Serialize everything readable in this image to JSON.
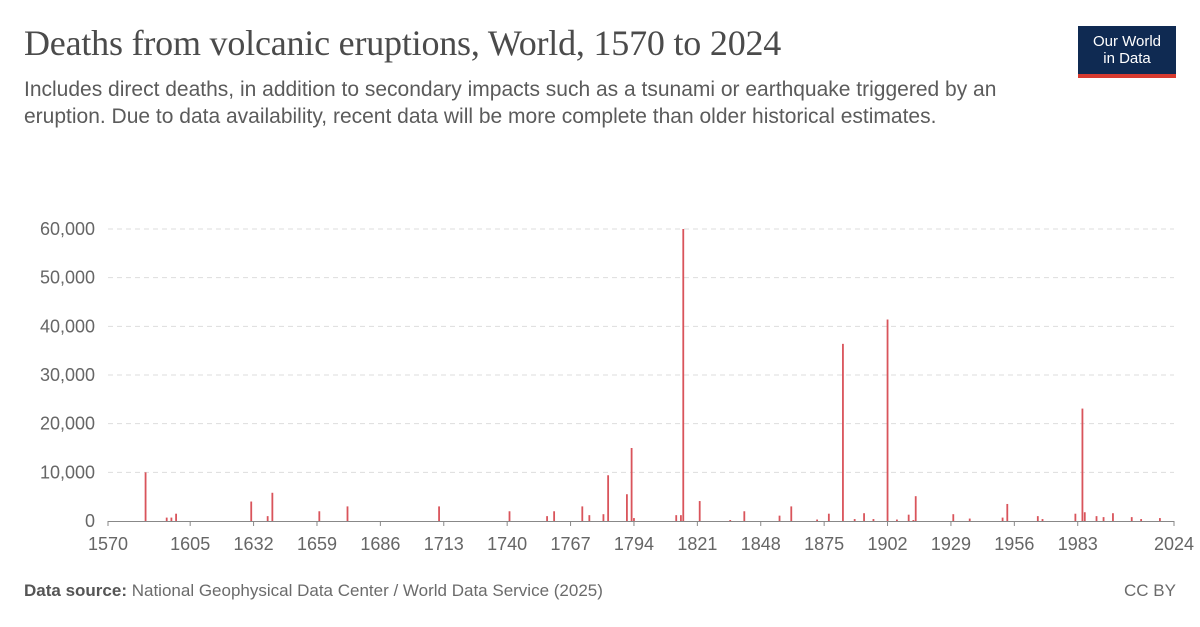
{
  "header": {
    "title": "Deaths from volcanic eruptions, World, 1570 to 2024",
    "subtitle": "Includes direct deaths, in addition to secondary impacts such as a tsunami or earthquake triggered by an eruption. Due to data availability, recent data will be more complete than older historical estimates.",
    "logo_line1": "Our World",
    "logo_line2": "in Data"
  },
  "footer": {
    "source_label": "Data source:",
    "source_text": "National Geophysical Data Center / World Data Service (2025)",
    "license": "CC BY"
  },
  "colors": {
    "bar": "#d9545b",
    "grid": "#dddddd",
    "logo_bg": "#0f2a52",
    "logo_accent": "#d73a2f"
  },
  "chart_data": {
    "type": "bar",
    "title": "Deaths from volcanic eruptions, World, 1570 to 2024",
    "xlabel": "",
    "ylabel": "",
    "xlim": [
      1570,
      2024
    ],
    "ylim": [
      0,
      60000
    ],
    "y_ticks": [
      "0",
      "10,000",
      "20,000",
      "30,000",
      "40,000",
      "50,000",
      "60,000"
    ],
    "x_ticks": [
      "1570",
      "1605",
      "1632",
      "1659",
      "1686",
      "1713",
      "1740",
      "1767",
      "1794",
      "1821",
      "1848",
      "1875",
      "1902",
      "1929",
      "1956",
      "1983",
      "2024"
    ],
    "grid": true,
    "series": [
      {
        "x": [
          1586,
          1595,
          1597,
          1599,
          1631,
          1638,
          1640,
          1660,
          1672,
          1711,
          1741,
          1757,
          1760,
          1772,
          1775,
          1781,
          1783,
          1791,
          1793,
          1794,
          1812,
          1814,
          1815,
          1822,
          1835,
          1841,
          1856,
          1861,
          1872,
          1877,
          1883,
          1888,
          1892,
          1896,
          1902,
          1906,
          1911,
          1913,
          1914,
          1930,
          1937,
          1951,
          1953,
          1966,
          1968,
          1982,
          1985,
          1986,
          1991,
          1994,
          1998,
          2006,
          2010,
          2018
        ],
        "values": [
          10000,
          700,
          700,
          1500,
          4000,
          1000,
          5800,
          2000,
          3000,
          3000,
          2000,
          1000,
          2000,
          3000,
          1200,
          1400,
          9400,
          5500,
          15000,
          600,
          1200,
          1200,
          60000,
          4100,
          200,
          2000,
          1100,
          3000,
          300,
          1500,
          36400,
          400,
          1600,
          400,
          41400,
          300,
          1300,
          200,
          5100,
          1400,
          500,
          700,
          3500,
          1000,
          400,
          1500,
          23100,
          1800,
          1000,
          800,
          1600,
          800,
          400,
          600
        ]
      }
    ]
  }
}
